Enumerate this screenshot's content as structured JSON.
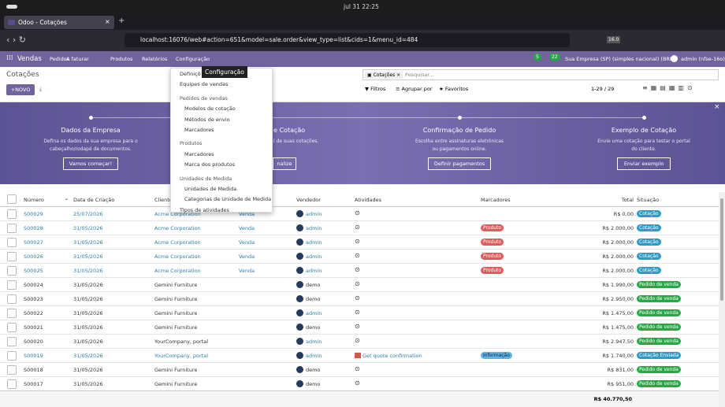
{
  "system_bar": {
    "clock": "jul 31  22:25"
  },
  "browser": {
    "tab_title": "Odoo - Cotações",
    "url": "localhost:16076/web#action=651&model=sale.order&view_type=list&cids=1&menu_id=484",
    "version_badge": "16.0"
  },
  "navbar": {
    "app": "Vendas",
    "menus": [
      "Pedidos",
      "A faturar",
      "Produtos",
      "Relatórios",
      "Configuração"
    ],
    "chat_count": "5",
    "activity_count": "22",
    "company": "Sua Empresa (SP) (simples nacional) (BRL)",
    "user": "admin (nfse-16o)"
  },
  "tooltip": "Configuração",
  "control_panel": {
    "breadcrumb": "Cotações",
    "new_button": "NOVO",
    "facet": "Cotações",
    "search_placeholder": "Pesquisar...",
    "filters": "Filtros",
    "group_by": "Agrupar por",
    "favorites": "Favoritos",
    "pager": "1-29 / 29"
  },
  "dropdown": [
    {
      "text": "Definiçõ",
      "kind": "item"
    },
    {
      "text": "Equipes de vendas",
      "kind": "item"
    },
    {
      "text": "Pedidos de vendas",
      "kind": "header"
    },
    {
      "text": "Modelos de cotação",
      "kind": "sub"
    },
    {
      "text": "Métodos de envio",
      "kind": "sub"
    },
    {
      "text": "Marcadores",
      "kind": "sub"
    },
    {
      "text": "Produtos",
      "kind": "header"
    },
    {
      "text": "Marcadores",
      "kind": "sub"
    },
    {
      "text": "Marca dos produtos",
      "kind": "sub"
    },
    {
      "text": "Unidades de Medida",
      "kind": "header"
    },
    {
      "text": "Unidades de Medida",
      "kind": "sub"
    },
    {
      "text": "Categorias de Unidade de Medida",
      "kind": "sub"
    },
    {
      "text": "Tipos de atividades",
      "kind": "item"
    }
  ],
  "onboarding": [
    {
      "title": "Dados da Empresa",
      "text": "Defina os dados da sua empresa para o cabeçalho/rodapé de documentos.",
      "button": "Vamos começar!"
    },
    {
      "title": "e Cotação",
      "text": "l de suas cotações.",
      "button": "nalize"
    },
    {
      "title": "Confirmação de Pedido",
      "text": "Escolha entre assinaturas eletrônicas ou pagamentos online.",
      "button": "Definir pagamentos"
    },
    {
      "title": "Exemplo de Cotação",
      "text": "Envie uma cotação para testar o portal do cliente.",
      "button": "Enviar exemplo"
    }
  ],
  "table": {
    "headers": {
      "number": "Número",
      "date": "Data de Criação",
      "customer": "Cliente",
      "salesperson": "Vendedor",
      "activities": "Atividades",
      "tags": "Marcadores",
      "total": "Total",
      "status": "Situação"
    },
    "rows": [
      {
        "number": "S00029",
        "date": "25/07/2026",
        "customer": "Acme Corporation",
        "team": "Venda",
        "salesperson": "admin",
        "tag": null,
        "total": "R$ 0,00",
        "status": "Cotação",
        "status_color": "#2f9bc4"
      },
      {
        "number": "S00028",
        "date": "31/05/2026",
        "customer": "Acme Corporation",
        "team": "Venda",
        "salesperson": "admin",
        "tag": "Produto",
        "total": "R$ 2.000,00",
        "status": "Cotação",
        "status_color": "#2f9bc4"
      },
      {
        "number": "S00027",
        "date": "31/05/2026",
        "customer": "Acme Corporation",
        "team": "Venda",
        "salesperson": "admin",
        "tag": "Produto",
        "total": "R$ 2.000,00",
        "status": "Cotação",
        "status_color": "#2f9bc4"
      },
      {
        "number": "S00026",
        "date": "31/05/2026",
        "customer": "Acme Corporation",
        "team": "Venda",
        "salesperson": "admin",
        "tag": "Produto",
        "total": "R$ 2.000,00",
        "status": "Cotação",
        "status_color": "#2f9bc4"
      },
      {
        "number": "S00025",
        "date": "31/05/2026",
        "customer": "Acme Corporation",
        "team": "Venda",
        "salesperson": "admin",
        "tag": "Produto",
        "total": "R$ 2.000,00",
        "status": "Cotação",
        "status_color": "#2f9bc4"
      },
      {
        "number": "S00024",
        "date": "31/05/2026",
        "customer": "Gemini Furniture",
        "salesperson": "demo",
        "total": "R$ 1.990,00",
        "status": "Pedido de venda",
        "status_color": "#28a745"
      },
      {
        "number": "S00023",
        "date": "31/05/2026",
        "customer": "Gemini Furniture",
        "salesperson": "demo",
        "total": "R$ 2.950,00",
        "status": "Pedido de venda",
        "status_color": "#28a745"
      },
      {
        "number": "S00022",
        "date": "31/05/2026",
        "customer": "Gemini Furniture",
        "salesperson": "admin",
        "total": "R$ 1.475,00",
        "status": "Pedido de venda",
        "status_color": "#28a745"
      },
      {
        "number": "S00021",
        "date": "31/05/2026",
        "customer": "Gemini Furniture",
        "salesperson": "demo",
        "total": "R$ 1.475,00",
        "status": "Pedido de venda",
        "status_color": "#28a745"
      },
      {
        "number": "S00020",
        "date": "31/05/2026",
        "customer": "YourCompany, portal",
        "salesperson": "admin",
        "total": "R$ 2.947,50",
        "status": "Pedido de venda",
        "status_color": "#28a745"
      },
      {
        "number": "S00019",
        "date": "31/05/2026",
        "customer": "YourCompany, portal",
        "salesperson": "admin",
        "activity": "Get quote confirmation",
        "tag": "Informação",
        "total": "R$ 1.740,00",
        "status": "Cotação Enviada",
        "status_color": "#2f9bc4"
      },
      {
        "number": "S00018",
        "date": "31/05/2026",
        "customer": "Gemini Furniture",
        "salesperson": "demo",
        "total": "R$ 831,00",
        "status": "Pedido de venda",
        "status_color": "#28a745"
      },
      {
        "number": "S00017",
        "date": "31/05/2026",
        "customer": "Gemini Furniture",
        "salesperson": "demo",
        "total": "R$ 951,00",
        "status": "Pedido de venda",
        "status_color": "#28a745"
      }
    ],
    "grand_total": "R$ 40.770,50"
  }
}
